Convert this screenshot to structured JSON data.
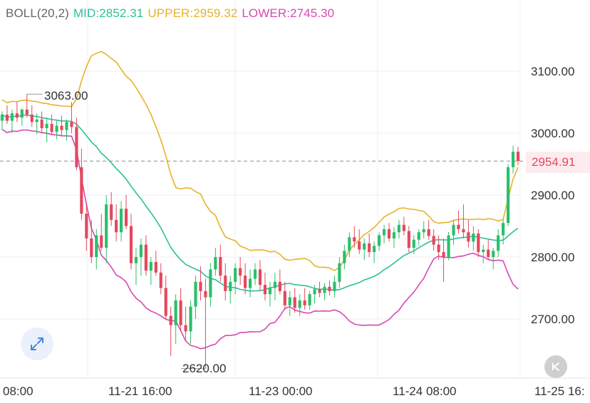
{
  "indicator": {
    "name": "BOLL(20,2)",
    "mid": "MID:2852.31",
    "upper": "UPPER:2959.32",
    "lower": "LOWER:2745.30",
    "colors": {
      "name": "#666666",
      "mid": "#2bbf9a",
      "upper": "#e8b22a",
      "lower": "#d44ab3"
    }
  },
  "current_price": "2954.91",
  "high_marker": "3063.00",
  "low_marker": "2620.00",
  "icons": {
    "expand": "expand-arrows-icon",
    "rewind": "rewind-to-start-icon"
  },
  "chart_data": {
    "type": "candlestick",
    "y_ticks": [
      "3100.00",
      "3000.00",
      "2900.00",
      "2800.00",
      "2700.00"
    ],
    "x_ticks": [
      "08:00",
      "11-21 16:00",
      "11-23 00:00",
      "11-24 08:00",
      "11-25 16:"
    ],
    "ylim": [
      2620,
      3150
    ],
    "current_price": 2954.91,
    "colors": {
      "up": "#2bbf6a",
      "down": "#e4485e",
      "mid": "#2bbf9a",
      "upper": "#e8b22a",
      "lower": "#d44ab3"
    },
    "candles": [
      [
        3020,
        3035,
        3005,
        3030
      ],
      [
        3030,
        3045,
        3015,
        3020
      ],
      [
        3020,
        3038,
        3000,
        3032
      ],
      [
        3032,
        3050,
        3018,
        3025
      ],
      [
        3025,
        3040,
        3012,
        3038
      ],
      [
        3038,
        3063,
        3025,
        3030
      ],
      [
        3030,
        3045,
        3010,
        3018
      ],
      [
        3018,
        3032,
        2998,
        3022
      ],
      [
        3022,
        3035,
        3000,
        3008
      ],
      [
        3008,
        3025,
        2985,
        3015
      ],
      [
        3015,
        3030,
        2998,
        3002
      ],
      [
        3002,
        3020,
        2990,
        3012
      ],
      [
        3012,
        3028,
        2995,
        3005
      ],
      [
        3005,
        3022,
        2988,
        3018
      ],
      [
        3018,
        3050,
        3000,
        3010
      ],
      [
        3010,
        3025,
        2940,
        2945
      ],
      [
        2945,
        2975,
        2860,
        2870
      ],
      [
        2870,
        2885,
        2810,
        2830
      ],
      [
        2830,
        2860,
        2790,
        2800
      ],
      [
        2800,
        2845,
        2780,
        2835
      ],
      [
        2835,
        2870,
        2810,
        2815
      ],
      [
        2815,
        2900,
        2790,
        2885
      ],
      [
        2885,
        2905,
        2850,
        2860
      ],
      [
        2860,
        2885,
        2825,
        2840
      ],
      [
        2840,
        2890,
        2825,
        2878
      ],
      [
        2878,
        2900,
        2845,
        2850
      ],
      [
        2850,
        2870,
        2780,
        2790
      ],
      [
        2790,
        2815,
        2755,
        2800
      ],
      [
        2800,
        2830,
        2770,
        2820
      ],
      [
        2820,
        2835,
        2770,
        2778
      ],
      [
        2778,
        2800,
        2755,
        2792
      ],
      [
        2792,
        2810,
        2770,
        2775
      ],
      [
        2775,
        2790,
        2740,
        2750
      ],
      [
        2750,
        2770,
        2700,
        2705
      ],
      [
        2705,
        2720,
        2640,
        2690
      ],
      [
        2690,
        2740,
        2660,
        2730
      ],
      [
        2730,
        2750,
        2680,
        2690
      ],
      [
        2690,
        2720,
        2665,
        2680
      ],
      [
        2680,
        2730,
        2660,
        2720
      ],
      [
        2720,
        2770,
        2700,
        2760
      ],
      [
        2760,
        2785,
        2730,
        2745
      ],
      [
        2745,
        2765,
        2620,
        2735
      ],
      [
        2735,
        2790,
        2720,
        2780
      ],
      [
        2780,
        2815,
        2770,
        2800
      ],
      [
        2800,
        2820,
        2760,
        2770
      ],
      [
        2770,
        2790,
        2730,
        2745
      ],
      [
        2745,
        2770,
        2725,
        2760
      ],
      [
        2760,
        2790,
        2740,
        2782
      ],
      [
        2782,
        2800,
        2755,
        2770
      ],
      [
        2770,
        2790,
        2740,
        2750
      ],
      [
        2750,
        2780,
        2735,
        2765
      ],
      [
        2765,
        2790,
        2755,
        2780
      ],
      [
        2780,
        2795,
        2745,
        2755
      ],
      [
        2755,
        2775,
        2730,
        2740
      ],
      [
        2740,
        2760,
        2720,
        2750
      ],
      [
        2750,
        2775,
        2730,
        2760
      ],
      [
        2760,
        2780,
        2740,
        2745
      ],
      [
        2745,
        2760,
        2715,
        2722
      ],
      [
        2722,
        2745,
        2705,
        2735
      ],
      [
        2735,
        2750,
        2710,
        2718
      ],
      [
        2718,
        2740,
        2705,
        2730
      ],
      [
        2730,
        2750,
        2715,
        2722
      ],
      [
        2722,
        2745,
        2715,
        2740
      ],
      [
        2740,
        2755,
        2725,
        2748
      ],
      [
        2748,
        2760,
        2735,
        2742
      ],
      [
        2742,
        2758,
        2730,
        2752
      ],
      [
        2752,
        2762,
        2738,
        2745
      ],
      [
        2745,
        2770,
        2735,
        2760
      ],
      [
        2760,
        2800,
        2750,
        2790
      ],
      [
        2790,
        2820,
        2780,
        2810
      ],
      [
        2810,
        2840,
        2800,
        2832
      ],
      [
        2832,
        2850,
        2815,
        2825
      ],
      [
        2825,
        2845,
        2805,
        2812
      ],
      [
        2812,
        2830,
        2795,
        2822
      ],
      [
        2822,
        2838,
        2800,
        2808
      ],
      [
        2808,
        2825,
        2790,
        2818
      ],
      [
        2818,
        2840,
        2810,
        2835
      ],
      [
        2835,
        2852,
        2822,
        2845
      ],
      [
        2845,
        2855,
        2825,
        2830
      ],
      [
        2830,
        2848,
        2815,
        2840
      ],
      [
        2840,
        2860,
        2830,
        2852
      ],
      [
        2852,
        2865,
        2835,
        2842
      ],
      [
        2842,
        2850,
        2808,
        2815
      ],
      [
        2815,
        2835,
        2805,
        2828
      ],
      [
        2828,
        2845,
        2818,
        2840
      ],
      [
        2840,
        2858,
        2830,
        2845
      ],
      [
        2845,
        2860,
        2828,
        2834
      ],
      [
        2834,
        2845,
        2810,
        2820
      ],
      [
        2820,
        2835,
        2795,
        2808
      ],
      [
        2808,
        2830,
        2760,
        2800
      ],
      [
        2800,
        2840,
        2795,
        2835
      ],
      [
        2835,
        2860,
        2820,
        2852
      ],
      [
        2852,
        2875,
        2838,
        2845
      ],
      [
        2845,
        2885,
        2830,
        2840
      ],
      [
        2840,
        2860,
        2815,
        2825
      ],
      [
        2825,
        2850,
        2810,
        2838
      ],
      [
        2838,
        2845,
        2800,
        2808
      ],
      [
        2808,
        2820,
        2790,
        2812
      ],
      [
        2812,
        2828,
        2795,
        2800
      ],
      [
        2800,
        2815,
        2780,
        2810
      ],
      [
        2810,
        2845,
        2800,
        2835
      ],
      [
        2835,
        2860,
        2820,
        2855
      ],
      [
        2855,
        2950,
        2850,
        2945
      ],
      [
        2945,
        2980,
        2935,
        2970
      ],
      [
        2970,
        2978,
        2948,
        2955
      ]
    ]
  }
}
